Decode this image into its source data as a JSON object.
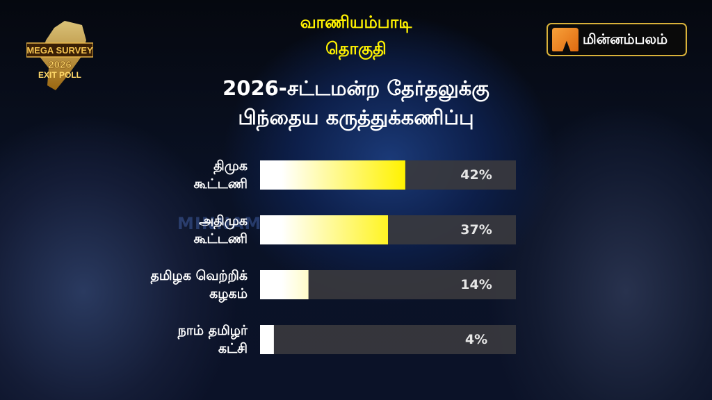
{
  "header": {
    "constituency": "வாணியம்பாடி",
    "constituency_suffix": "தொகுதி",
    "title_line1": "2026-சட்டமன்ற தேர்தலுக்கு",
    "title_line2": "பிந்தைய கருத்துக்கணிப்பு"
  },
  "logos": {
    "left": {
      "line1": "MEGA SURVEY",
      "line2": "2026",
      "line3": "EXIT POLL"
    },
    "right": {
      "text": "மின்னம்பலம்",
      "accent": "#f08a24",
      "border": "#d9b23a"
    },
    "watermark": "MINNAMBALAM"
  },
  "chart_data": {
    "type": "bar",
    "orientation": "horizontal",
    "categories": [
      [
        "திமுக",
        "கூட்டணி"
      ],
      [
        "அதிமுக",
        "கூட்டணி"
      ],
      [
        "தமிழக வெற்றிக்",
        "கழகம்"
      ],
      [
        "நாம் தமிழர்",
        "கட்சி"
      ]
    ],
    "values": [
      42,
      37,
      14,
      4
    ],
    "data_labels": [
      "42%",
      "37%",
      "14%",
      "4%"
    ],
    "xlim": [
      0,
      74
    ],
    "colors": {
      "fill_start": "#ffffff",
      "fill_end": "#fff200",
      "track": "#3a3a3e"
    },
    "grid": false,
    "legend": "none"
  }
}
